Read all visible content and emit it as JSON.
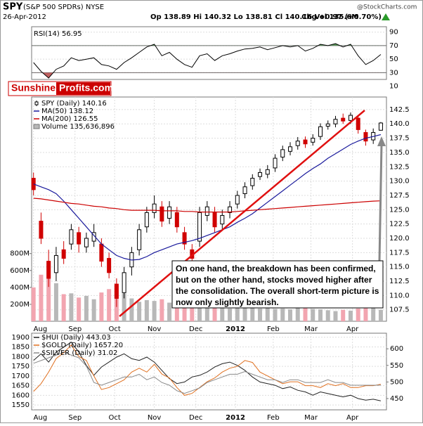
{
  "header": {
    "symbol": "SPY",
    "name": "(S&P 500 SPDRs) NYSE",
    "date": "26-Apr-2012",
    "quote": "Op 138.89 Hi 140.32 Lo 138.81 Cl 140.16 Vol 135.6M",
    "change": "Chg +0.97 (+0.70%)",
    "source": "@StockCharts.com"
  },
  "logo": {
    "part1": "Sunshine",
    "part2": "Profits.com"
  },
  "annotation": [
    "On one hand, the breakdown has been confirmed,",
    "but on the other hand, stocks moved higher after",
    "the consolidation. The overall short-term picture is",
    "now only slightly bearish."
  ],
  "chart_data": [
    {
      "type": "line",
      "x": [
        0,
        4,
        8,
        12,
        16,
        20,
        24,
        28,
        32,
        36,
        40,
        44,
        48,
        52,
        56,
        60,
        64,
        68,
        72,
        76,
        80,
        84,
        88,
        92,
        96,
        100,
        104,
        108,
        112,
        116,
        120,
        124,
        128,
        132,
        136,
        140,
        144,
        148,
        152,
        156,
        160,
        164,
        168,
        172,
        176,
        180,
        184
      ],
      "xlim": [
        -1,
        187
      ],
      "ylim": [
        20,
        98
      ],
      "yticks": [
        10,
        30,
        50,
        70,
        90
      ],
      "grid": true,
      "thresholds": [
        30,
        70
      ],
      "series": [
        {
          "name": "RSI(14) 56.95",
          "type": "line",
          "color": "#000000",
          "values": [
            45,
            32,
            22,
            35,
            40,
            52,
            48,
            50,
            52,
            42,
            40,
            35,
            45,
            52,
            60,
            68,
            72,
            55,
            60,
            50,
            42,
            38,
            55,
            58,
            48,
            55,
            58,
            62,
            65,
            66,
            68,
            64,
            67,
            70,
            68,
            70,
            62,
            66,
            72,
            70,
            73,
            68,
            72,
            55,
            42,
            48,
            56.95
          ]
        }
      ]
    },
    {
      "type": "candlestick",
      "x": [
        0,
        4,
        8,
        12,
        16,
        20,
        24,
        28,
        32,
        36,
        40,
        44,
        48,
        52,
        56,
        60,
        64,
        68,
        72,
        76,
        80,
        84,
        88,
        92,
        96,
        100,
        104,
        108,
        112,
        116,
        120,
        124,
        128,
        132,
        136,
        140,
        144,
        148,
        152,
        156,
        160,
        164,
        168,
        172,
        176,
        180,
        184
      ],
      "xlim": [
        -1,
        187
      ],
      "xticks": [
        {
          "value": 0,
          "label": "Aug"
        },
        {
          "value": 22,
          "label": "Sep"
        },
        {
          "value": 43,
          "label": "Oct"
        },
        {
          "value": 64,
          "label": "Nov"
        },
        {
          "value": 86,
          "label": "Dec"
        },
        {
          "value": 107,
          "label": "2012"
        },
        {
          "value": 127,
          "label": "Feb"
        },
        {
          "value": 147,
          "label": "Mar"
        },
        {
          "value": 169,
          "label": "Apr"
        }
      ],
      "ylim": [
        105.5,
        144.7
      ],
      "yticks": [
        107.5,
        {
          "value": 110,
          "label": "110.0"
        },
        112.5,
        {
          "value": 115,
          "label": "115.0"
        },
        117.5,
        {
          "value": 120,
          "label": "120.0"
        },
        122.5,
        {
          "value": 125,
          "label": "125.0"
        },
        127.5,
        {
          "value": 130,
          "label": "130.0"
        },
        132.5,
        {
          "value": 135,
          "label": "135.0"
        },
        137.5,
        {
          "value": 140,
          "label": "140.0"
        },
        142.5
      ],
      "y2lim": [
        0,
        2650000000
      ],
      "y2ticks": [
        {
          "value": 200000000,
          "label": "200M"
        },
        {
          "value": 400000000,
          "label": "400M"
        },
        {
          "value": 600000000,
          "label": "600M"
        },
        {
          "value": 800000000,
          "label": "800M"
        }
      ],
      "grid": true,
      "series": [
        {
          "name": "SPY (Daily) 140.16",
          "type": "candlestick",
          "color": "#000000",
          "up_color": "#000000",
          "down_color": "#d00000",
          "open": [
            130.5,
            123,
            116,
            114,
            118,
            119,
            121,
            118.5,
            119.5,
            119,
            116.5,
            112,
            110.5,
            115,
            118,
            122,
            124.5,
            125.5,
            123.5,
            124.5,
            121,
            118,
            119.5,
            124,
            124.5,
            122.5,
            124.5,
            126,
            127.8,
            129.2,
            130.8,
            131.2,
            132.3,
            134.2,
            135.2,
            136.2,
            137.2,
            136.8,
            137.8,
            139.6,
            140,
            141,
            140.6,
            141,
            138.5,
            137.2,
            138.89
          ],
          "high": [
            131.5,
            124.5,
            118,
            118.5,
            119.5,
            122.5,
            122,
            121,
            122.5,
            120,
            117.5,
            113,
            115,
            118.5,
            122.5,
            125.5,
            127.5,
            126.5,
            126.5,
            125.5,
            122,
            119,
            125.5,
            126.5,
            125.5,
            125,
            126.5,
            128.3,
            129.8,
            131.2,
            132.2,
            132.8,
            134.7,
            136.2,
            136.8,
            137.7,
            137.8,
            138.2,
            140.1,
            140.6,
            141.4,
            141.8,
            142,
            141.4,
            139,
            139.2,
            140.32
          ],
          "low": [
            127.5,
            119,
            111.5,
            112.5,
            115.5,
            118,
            117.5,
            117.5,
            118.5,
            115,
            113,
            108,
            109.5,
            113.5,
            117,
            121,
            123.5,
            122,
            122.5,
            121,
            118,
            115.5,
            118.5,
            123,
            121,
            121.5,
            123.5,
            125.2,
            127,
            128.5,
            130.2,
            130.5,
            131.6,
            133.5,
            134.5,
            135.5,
            135.8,
            136.2,
            137.2,
            139,
            139.4,
            140,
            140,
            138.3,
            136.2,
            136.5,
            138.81
          ],
          "close": [
            128.5,
            120,
            113,
            117,
            116.5,
            121.5,
            119,
            120,
            121,
            116,
            114,
            109.5,
            114,
            117.5,
            121.5,
            124.5,
            126,
            123,
            125.5,
            122,
            119,
            116.5,
            124.5,
            125.5,
            122,
            124,
            125.5,
            127.5,
            129,
            130.5,
            131.5,
            132,
            134,
            135.5,
            136,
            137,
            136.5,
            137.5,
            139.5,
            140,
            140.8,
            140.5,
            141.5,
            139,
            137,
            138.5,
            140.16
          ]
        },
        {
          "name": "MA(50) 138.12",
          "type": "line",
          "color": "#1a1a9c",
          "values": [
            129.5,
            129,
            128.5,
            127.8,
            126.5,
            125,
            123.5,
            122,
            120.5,
            119,
            118,
            117,
            116.5,
            116.2,
            116.3,
            116.8,
            117.5,
            118,
            118.5,
            119,
            119.3,
            119.6,
            120,
            120.5,
            121,
            121.5,
            122,
            122.8,
            123.5,
            124.3,
            125.3,
            126.3,
            127.3,
            128.3,
            129.3,
            130.3,
            131.3,
            132.2,
            133,
            134,
            134.8,
            135.6,
            136.4,
            137,
            137.5,
            137.8,
            138.12
          ]
        },
        {
          "name": "MA(200) 126.55",
          "type": "line",
          "color": "#cc0000",
          "values": [
            127,
            126.9,
            126.7,
            126.5,
            126.3,
            126.1,
            126,
            125.8,
            125.6,
            125.5,
            125.3,
            125.2,
            125,
            124.9,
            124.9,
            124.9,
            124.9,
            124.8,
            124.8,
            124.8,
            124.7,
            124.7,
            124.6,
            124.6,
            124.6,
            124.6,
            124.6,
            124.7,
            124.8,
            124.9,
            125,
            125.1,
            125.2,
            125.3,
            125.4,
            125.5,
            125.6,
            125.7,
            125.8,
            125.9,
            126,
            126.1,
            126.2,
            126.3,
            126.4,
            126.5,
            126.55
          ]
        },
        {
          "name": "Volume 135,636,896",
          "type": "bar",
          "axis": "y2",
          "color": "#555555",
          "up_color": "#b8b8b8",
          "down_color": "#f2a5b0",
          "values": [
            400000000,
            550000000,
            700000000,
            450000000,
            320000000,
            330000000,
            280000000,
            300000000,
            260000000,
            340000000,
            380000000,
            420000000,
            330000000,
            270000000,
            230000000,
            250000000,
            240000000,
            260000000,
            220000000,
            210000000,
            200000000,
            230000000,
            210000000,
            190000000,
            230000000,
            200000000,
            150000000,
            160000000,
            170000000,
            155000000,
            150000000,
            160000000,
            145000000,
            150000000,
            140000000,
            155000000,
            170000000,
            145000000,
            140000000,
            130000000,
            120000000,
            135000000,
            125000000,
            150000000,
            175000000,
            160000000,
            135636896
          ]
        }
      ]
    },
    {
      "type": "line",
      "x": [
        0,
        4,
        8,
        12,
        16,
        20,
        24,
        28,
        32,
        36,
        40,
        44,
        48,
        52,
        56,
        60,
        64,
        68,
        72,
        76,
        80,
        84,
        88,
        92,
        96,
        100,
        104,
        108,
        112,
        116,
        120,
        124,
        128,
        132,
        136,
        140,
        144,
        148,
        152,
        156,
        160,
        164,
        168,
        172,
        176,
        180,
        184
      ],
      "xlim": [
        -1,
        187
      ],
      "xticks": [
        {
          "value": 0,
          "label": "Aug"
        },
        {
          "value": 22,
          "label": "Sep"
        },
        {
          "value": 43,
          "label": "Oct"
        },
        {
          "value": 64,
          "label": "Nov"
        },
        {
          "value": 86,
          "label": "Dec"
        },
        {
          "value": 107,
          "label": "2012"
        },
        {
          "value": 127,
          "label": "Feb"
        },
        {
          "value": 147,
          "label": "Mar"
        },
        {
          "value": 169,
          "label": "Apr"
        }
      ],
      "ylim": [
        1525,
        1921
      ],
      "yticks": [
        1550,
        1600,
        1650,
        1700,
        1750,
        1800,
        1850,
        1900
      ],
      "y2lim": [
        416,
        647
      ],
      "y2ticks": [
        450,
        500,
        550,
        600
      ],
      "y3lim": [
        22,
        50
      ],
      "grid": true,
      "series": [
        {
          "name": "$HUI (Daily) 443.03",
          "type": "line",
          "axis": "y2",
          "color": "#222222",
          "values": [
            565,
            585,
            560,
            590,
            605,
            620,
            590,
            550,
            520,
            545,
            560,
            575,
            585,
            570,
            565,
            575,
            560,
            535,
            510,
            495,
            500,
            515,
            520,
            530,
            545,
            555,
            560,
            550,
            535,
            515,
            500,
            495,
            490,
            480,
            485,
            475,
            470,
            460,
            470,
            465,
            460,
            455,
            460,
            450,
            445,
            448,
            443.03
          ]
        },
        {
          "name": "$GOLD (Daily) 1657.20",
          "type": "line",
          "color": "#e07020",
          "values": [
            1620,
            1660,
            1720,
            1790,
            1820,
            1860,
            1800,
            1780,
            1700,
            1630,
            1640,
            1660,
            1680,
            1720,
            1740,
            1720,
            1760,
            1710,
            1690,
            1640,
            1600,
            1610,
            1640,
            1670,
            1690,
            1720,
            1740,
            1750,
            1780,
            1770,
            1720,
            1700,
            1680,
            1660,
            1670,
            1670,
            1650,
            1650,
            1640,
            1660,
            1650,
            1660,
            1640,
            1640,
            1650,
            1650,
            1657.2
          ]
        },
        {
          "name": "$SILVER (Daily) 31.02",
          "type": "line",
          "axis": "y3",
          "color": "#8a8a8a",
          "values": [
            39,
            40,
            41,
            42,
            43,
            42,
            41,
            38,
            32,
            31,
            32,
            33,
            34,
            34,
            35,
            33,
            34,
            32,
            31,
            29,
            28,
            29,
            30,
            32,
            33,
            34,
            35,
            35,
            36,
            35,
            34,
            33,
            33,
            32,
            33,
            33,
            32,
            32,
            32,
            33,
            32,
            32,
            31,
            31,
            31,
            31,
            31.02
          ]
        }
      ]
    }
  ]
}
